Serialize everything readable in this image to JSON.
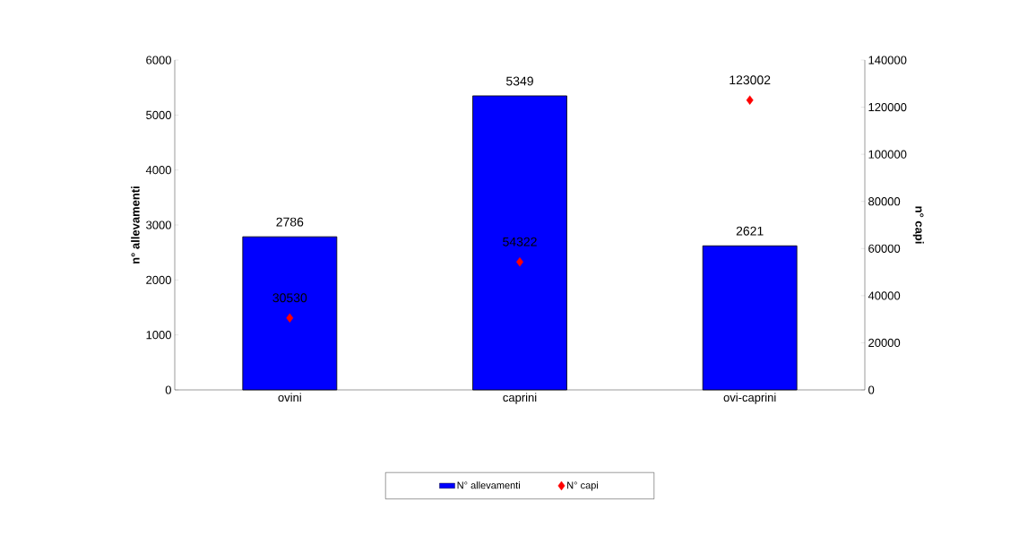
{
  "chart_data": {
    "type": "bar",
    "categories": [
      "ovini",
      "caprini",
      "ovi-caprini"
    ],
    "ylabel": "n° allevamenti",
    "y2label": "n° capi",
    "series": [
      {
        "name": "N° allevamenti",
        "color": "#0000ff",
        "values": [
          2786,
          5349,
          2621
        ]
      },
      {
        "name": "N° capi",
        "type": "scatter",
        "axis": "y2",
        "color": "#ff0000",
        "values": [
          30530,
          54322,
          123002
        ]
      }
    ],
    "ylim": [
      0,
      6000
    ],
    "yticks": [
      0,
      1000,
      2000,
      3000,
      4000,
      5000,
      6000
    ],
    "y2lim": [
      0,
      140000
    ],
    "y2ticks": [
      0,
      20000,
      40000,
      60000,
      80000,
      100000,
      120000,
      140000
    ],
    "marker": "diamond",
    "data_labels": true,
    "legend": "bottom"
  }
}
